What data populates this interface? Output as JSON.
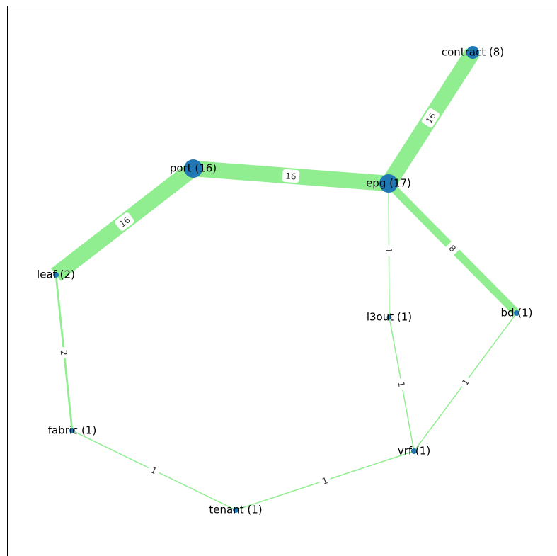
{
  "nodes": [
    {
      "label": "contract (8)"
    },
    {
      "label": "port (16)"
    },
    {
      "label": "epg (17)"
    },
    {
      "label": "leaf (2)"
    },
    {
      "label": "bd (1)"
    },
    {
      "label": "l3out (1)"
    },
    {
      "label": "fabric (1)"
    },
    {
      "label": "vrf (1)"
    },
    {
      "label": "tenant (1)"
    }
  ],
  "edges": [
    {
      "source": 1,
      "target": 2,
      "weight": 16
    },
    {
      "source": 2,
      "target": 0,
      "weight": 16
    },
    {
      "source": 3,
      "target": 1,
      "weight": 16
    },
    {
      "source": 2,
      "target": 4,
      "weight": 8
    },
    {
      "source": 2,
      "target": 5,
      "weight": 1
    },
    {
      "source": 3,
      "target": 6,
      "weight": 2
    },
    {
      "source": 5,
      "target": 7,
      "weight": 1
    },
    {
      "source": 4,
      "target": 7,
      "weight": 1
    },
    {
      "source": 6,
      "target": 8,
      "weight": 1
    },
    {
      "source": 8,
      "target": 7,
      "weight": 1
    }
  ]
}
